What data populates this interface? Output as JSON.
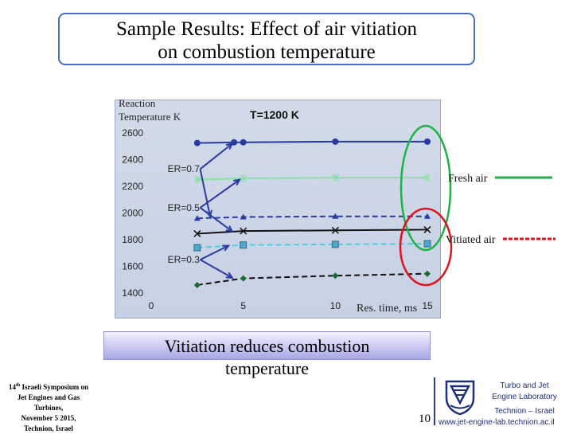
{
  "slide": {
    "title_line1": "Sample Results: Effect of air vitiation",
    "title_line2": "on combustion temperature",
    "conclusion_line1": "Vitiation reduces combustion",
    "conclusion_line2": "temperature",
    "footer_line1": "14",
    "footer_sup": "th",
    "footer_line1b": " Israeli Symposium on",
    "footer_line2": "Jet Engines and Gas",
    "footer_line3": "Turbines,",
    "footer_line4": "November 5 2015,",
    "footer_line5": "Technion, Israel",
    "page_number": "10",
    "lab_line1": "Turbo and Jet",
    "lab_line2": "Engine Laboratory",
    "lab_line3": "Technion – Israel",
    "lab_url": "www.jet-engine-lab.technion.ac.il"
  },
  "chart_data": {
    "type": "line",
    "ylabel_line1": "Reaction",
    "ylabel_line2": "Temperature K",
    "xlabel": "Res. time, ms",
    "annotation_temp": "T=1200 K",
    "xlim": [
      0,
      15
    ],
    "ylim": [
      1400,
      2600
    ],
    "x_ticks": [
      0,
      5,
      10,
      15
    ],
    "y_ticks": [
      1400,
      1600,
      1800,
      2000,
      2200,
      2400,
      2600
    ],
    "er_labels": [
      {
        "text": "ER=0.7",
        "x": 0.5,
        "y": 2330
      },
      {
        "text": "ER=0.5",
        "x": 0.5,
        "y": 2040
      },
      {
        "text": "ER=0.3",
        "x": 0.5,
        "y": 1650
      }
    ],
    "legend": {
      "fresh": "Fresh air",
      "vitiated": "Vitiated air",
      "fresh_color": "#1db344",
      "vitiated_color": "#e0141e"
    },
    "series": [
      {
        "group": "ER=0.7",
        "style": "solid",
        "marker": "circle",
        "color": "#2b3a9e",
        "x": [
          2.5,
          4.5,
          5,
          10,
          15
        ],
        "y": [
          2525,
          2530,
          2530,
          2535,
          2535
        ]
      },
      {
        "group": "ER=0.7",
        "style": "dashed",
        "marker": "triangle",
        "color": "#2b3a9e",
        "x": [
          2.5,
          5,
          10,
          15
        ],
        "y": [
          1960,
          1970,
          1975,
          1975
        ]
      },
      {
        "group": "ER=0.5",
        "style": "solid",
        "marker": "asterisk",
        "color": "#8be0a8",
        "x": [
          2.5,
          5,
          10,
          15
        ],
        "y": [
          2250,
          2260,
          2265,
          2265
        ]
      },
      {
        "group": "ER=0.5",
        "style": "solid",
        "marker": "x",
        "color": "#111111",
        "x": [
          2.5,
          5,
          10,
          15
        ],
        "y": [
          1845,
          1865,
          1870,
          1875
        ]
      },
      {
        "group": "ER=0.3",
        "style": "dashed",
        "marker": "square",
        "color": "#4dd0d9",
        "marker_color": "#4fa6c9",
        "x": [
          2.5,
          5,
          10,
          15
        ],
        "y": [
          1740,
          1760,
          1765,
          1770
        ]
      },
      {
        "group": "ER=0.3",
        "style": "dashed",
        "marker": "diamond",
        "color": "#111111",
        "marker_color": "#1a6b2e",
        "x": [
          2.5,
          5,
          10,
          15
        ],
        "y": [
          1460,
          1510,
          1530,
          1545
        ]
      }
    ]
  }
}
